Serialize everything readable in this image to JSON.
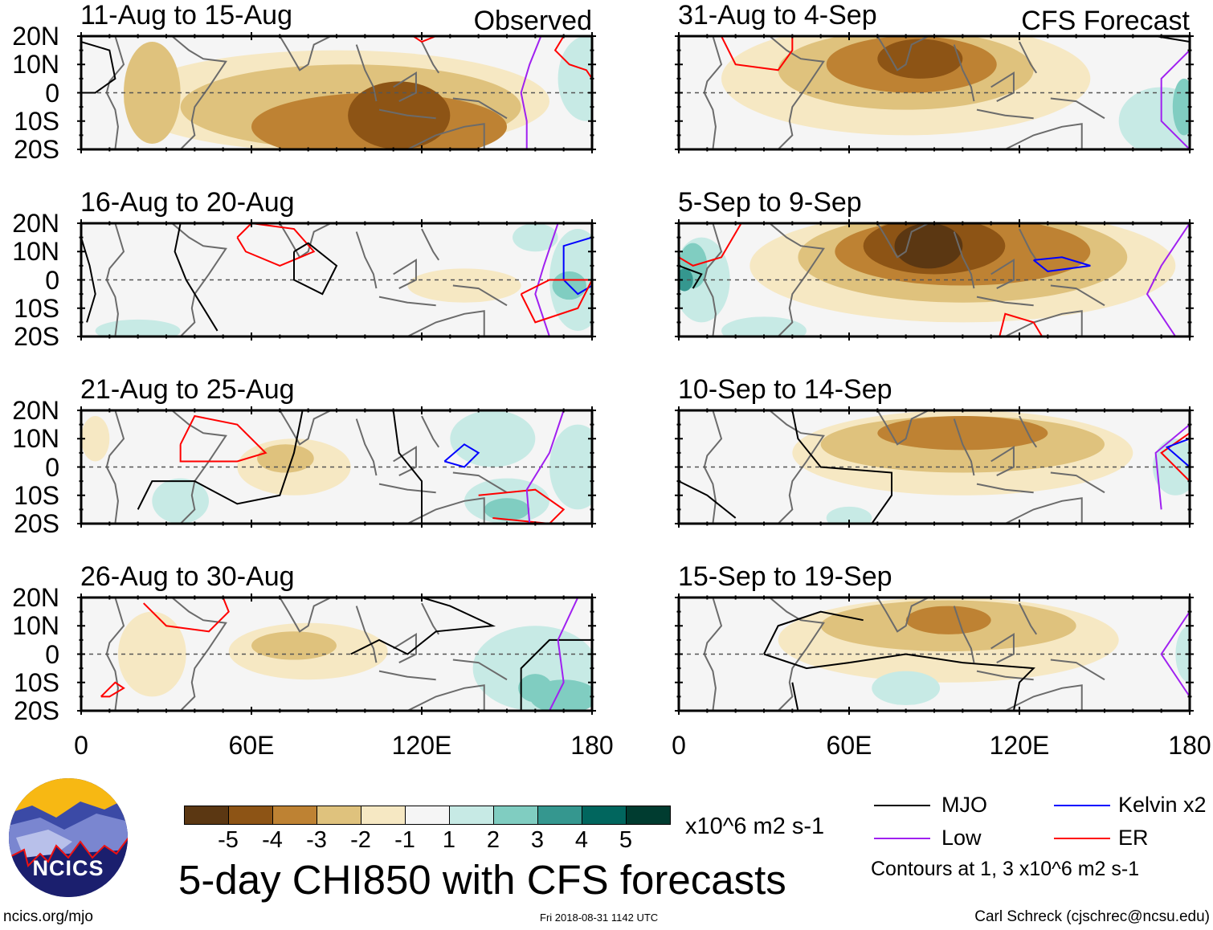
{
  "panels": {
    "left": [
      {
        "title": "11-Aug to 15-Aug",
        "tag": "Observed"
      },
      {
        "title": "16-Aug to 20-Aug"
      },
      {
        "title": "21-Aug to 25-Aug"
      },
      {
        "title": "26-Aug to 30-Aug"
      }
    ],
    "right": [
      {
        "title": "31-Aug to 4-Sep",
        "tag": "CFS Forecast"
      },
      {
        "title": "5-Sep to 9-Sep"
      },
      {
        "title": "10-Sep to 14-Sep"
      },
      {
        "title": "15-Sep to 19-Sep"
      }
    ]
  },
  "axes": {
    "lat_labels": [
      "20N",
      "10N",
      "0",
      "10S",
      "20S"
    ],
    "lon_labels": [
      "0",
      "60E",
      "120E",
      "180"
    ]
  },
  "colorbar": {
    "labels": [
      "-5",
      "-4",
      "-3",
      "-2",
      "-1",
      "1",
      "2",
      "3",
      "4",
      "5"
    ],
    "colors": [
      "#5b3712",
      "#8d5415",
      "#be8233",
      "#dfc27d",
      "#f6e8c3",
      "#f5f5f5",
      "#c7eae5",
      "#80cdc1",
      "#35978f",
      "#01665e",
      "#003c30"
    ],
    "units": "x10^6 m2 s-1"
  },
  "title": "5-day CHI850 with CFS forecasts",
  "legend": {
    "items": [
      {
        "label": "MJO",
        "color": "#000000"
      },
      {
        "label": "Kelvin x2",
        "color": "#0000ff"
      },
      {
        "label": "Low",
        "color": "#a020f0"
      },
      {
        "label": "ER",
        "color": "#ff0000"
      }
    ],
    "note": "Contours at 1, 3 x10^6 m2 s-1"
  },
  "logo": {
    "text": "NCICS"
  },
  "footer": {
    "url": "ncics.org/mjo",
    "timestamp": "Fri 2018-08-31 1142 UTC",
    "author": "Carl Schreck (cjschrec@ncsu.edu)"
  }
}
